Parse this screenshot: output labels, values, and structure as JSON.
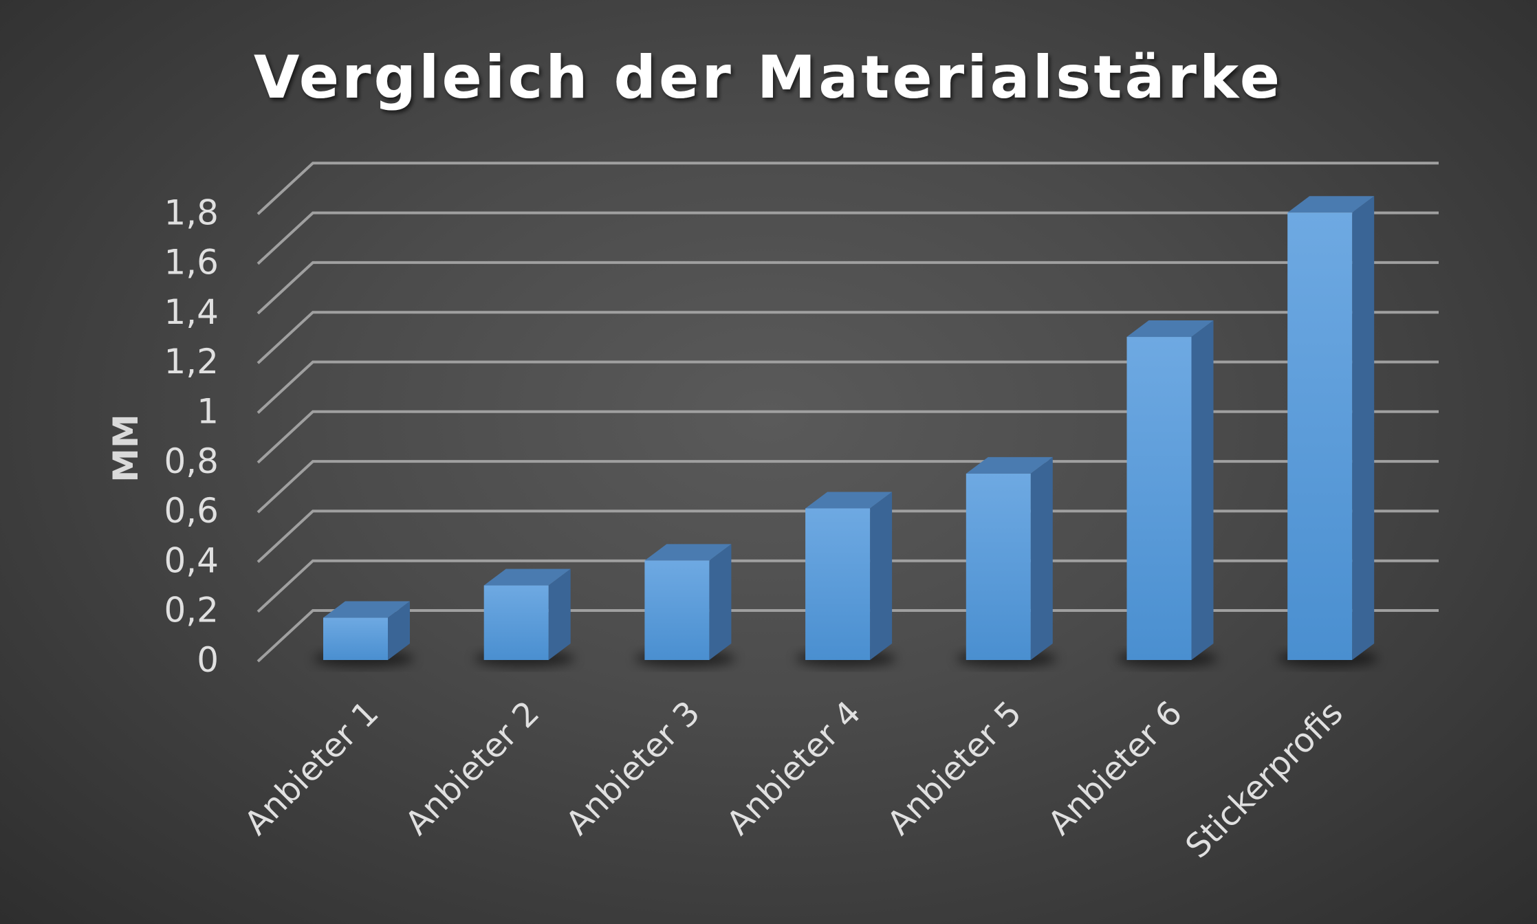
{
  "chart_data": {
    "type": "bar",
    "title": "Vergleich der Materialstärke",
    "xlabel": "",
    "ylabel": "MM",
    "categories": [
      "Anbieter 1",
      "Anbieter 2",
      "Anbieter 3",
      "Anbieter 4",
      "Anbieter 5",
      "Anbieter 6",
      "Stickerprofis"
    ],
    "values": [
      0.17,
      0.3,
      0.4,
      0.61,
      0.75,
      1.3,
      1.8
    ],
    "y_tick_labels": [
      "0",
      "0,2",
      "0,4",
      "0,6",
      "0,8",
      "1",
      "1,2",
      "1,4",
      "1,6",
      "1,8"
    ],
    "ylim": [
      0,
      1.8
    ],
    "grid": true,
    "legend": "none",
    "colors": {
      "bar_front": "#5b9bd5",
      "bar_top": "#4a7bb0",
      "bar_side": "#3a6596",
      "background": "#4b4b4b",
      "gridline": "#a0a0a0",
      "text": "#e0e0e0"
    }
  }
}
